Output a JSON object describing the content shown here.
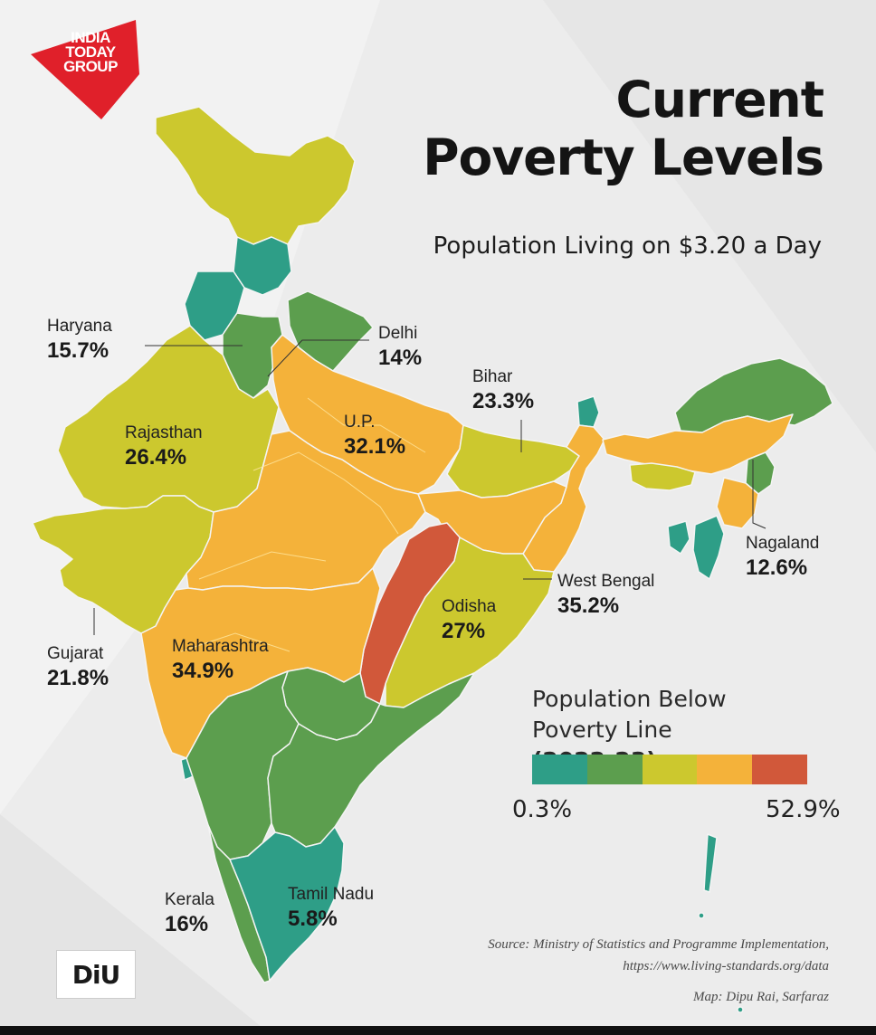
{
  "brand": {
    "logo_lines": [
      "INDIA",
      "TODAY",
      "GROUP"
    ],
    "logo_color": "#e0202a"
  },
  "title_lines": [
    "Current",
    "Poverty Levels"
  ],
  "subtitle": "Population Living on $3.20 a Day",
  "labels": {
    "haryana": {
      "name": "Haryana",
      "pct": "15.7%"
    },
    "delhi": {
      "name": "Delhi",
      "pct": "14%"
    },
    "bihar": {
      "name": "Bihar",
      "pct": "23.3%"
    },
    "rajasthan": {
      "name": "Rajasthan",
      "pct": "26.4%"
    },
    "up": {
      "name": "U.P.",
      "pct": "32.1%"
    },
    "nagaland": {
      "name": "Nagaland",
      "pct": "12.6%"
    },
    "west_bengal": {
      "name": "West Bengal",
      "pct": "35.2%"
    },
    "odisha": {
      "name": "Odisha",
      "pct": "27%"
    },
    "gujarat": {
      "name": "Gujarat",
      "pct": "21.8%"
    },
    "maharashtra": {
      "name": "Maharashtra",
      "pct": "34.9%"
    },
    "kerala": {
      "name": "Kerala",
      "pct": "16%"
    },
    "tamil_nadu": {
      "name": "Tamil Nadu",
      "pct": "5.8%"
    }
  },
  "legend": {
    "title_line1": "Population Below",
    "title_line2": "Poverty Line",
    "title_period": "(2022-23)",
    "min": "0.3%",
    "max": "52.9%",
    "colors": [
      "#2e9e87",
      "#5c9e4e",
      "#ccc82e",
      "#f2b53a",
      "#f5aa35",
      "#d1583a"
    ]
  },
  "source_lines": [
    "Source: Ministry of Statistics and Programme Implementation,",
    "https://www.living-standards.org/data"
  ],
  "credit": "Map: Dipu Rai, Sarfaraz",
  "diu_logo": "DiU",
  "palette": {
    "teal": "#2e9e87",
    "green": "#5c9e4e",
    "yellow": "#ccc82e",
    "orange": "#f4b23a",
    "red": "#d1583a",
    "background": "#ececec"
  }
}
